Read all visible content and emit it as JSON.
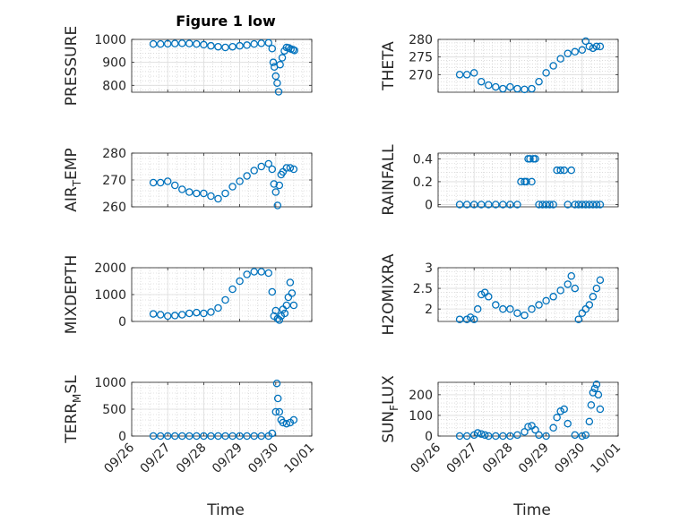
{
  "figure": {
    "title": "Figure 1 low",
    "xlabel": "Time"
  },
  "colors": {
    "marker": "#0072BD",
    "axis": "#262626",
    "grid": "#c8c8c8"
  },
  "chart_data": [
    {
      "type": "scatter",
      "title": "Figure 1 low",
      "ylabel": "PRESSURE",
      "ylabel_parts": [],
      "ylim": [
        770,
        1000
      ],
      "yticks": [
        800,
        900,
        1000
      ],
      "ytick_labels": [
        "800",
        "900",
        "1000"
      ],
      "xlim": [
        0,
        5
      ],
      "x": [
        0.6,
        0.8,
        1.0,
        1.2,
        1.4,
        1.6,
        1.8,
        2.0,
        2.2,
        2.4,
        2.6,
        2.8,
        3.0,
        3.2,
        3.4,
        3.6,
        3.8,
        3.9,
        3.93,
        3.96,
        4.0,
        4.04,
        4.08,
        4.12,
        4.18,
        4.24,
        4.3,
        4.36,
        4.42,
        4.48,
        4.52
      ],
      "y": [
        980,
        980,
        981,
        982,
        983,
        982,
        980,
        977,
        972,
        968,
        965,
        968,
        972,
        975,
        980,
        983,
        985,
        960,
        900,
        880,
        840,
        810,
        772,
        890,
        920,
        950,
        965,
        963,
        958,
        955,
        952
      ]
    },
    {
      "type": "scatter",
      "ylabel": "THETA",
      "ylabel_parts": [],
      "ylim": [
        265,
        280
      ],
      "yticks": [
        270,
        275,
        280
      ],
      "ytick_labels": [
        "270",
        "275",
        "280"
      ],
      "xlim": [
        0,
        5
      ],
      "x": [
        0.6,
        0.8,
        1.0,
        1.2,
        1.4,
        1.6,
        1.8,
        2.0,
        2.2,
        2.4,
        2.6,
        2.8,
        3.0,
        3.2,
        3.4,
        3.6,
        3.8,
        4.0,
        4.1,
        4.2,
        4.3,
        4.4,
        4.5
      ],
      "y": [
        270,
        270,
        270.5,
        268,
        267,
        266.5,
        266,
        266.5,
        266,
        265.8,
        266,
        268,
        270.5,
        272.5,
        274.5,
        276,
        276.5,
        277,
        279.5,
        278,
        277.5,
        278,
        278
      ]
    },
    {
      "type": "scatter",
      "ylabel": "AIR_TEMP",
      "ylabel_parts": [
        "AIR",
        "T",
        "EMP"
      ],
      "ylim": [
        260,
        280
      ],
      "yticks": [
        260,
        270,
        280
      ],
      "ytick_labels": [
        "260",
        "270",
        "280"
      ],
      "xlim": [
        0,
        5
      ],
      "x": [
        0.6,
        0.8,
        1.0,
        1.2,
        1.4,
        1.6,
        1.8,
        2.0,
        2.2,
        2.4,
        2.6,
        2.8,
        3.0,
        3.2,
        3.4,
        3.6,
        3.8,
        3.9,
        3.95,
        4.0,
        4.05,
        4.1,
        4.15,
        4.2,
        4.3,
        4.4,
        4.5
      ],
      "y": [
        269,
        269,
        269.5,
        268,
        266.5,
        265.5,
        265,
        265,
        264,
        263,
        265,
        267.5,
        269.5,
        271.5,
        273.5,
        275,
        276,
        274,
        268.5,
        265.5,
        260.5,
        268,
        272,
        273,
        274.5,
        274.5,
        274
      ]
    },
    {
      "type": "scatter",
      "ylabel": "RAINFALL",
      "ylabel_parts": [],
      "ylim": [
        -0.02,
        0.45
      ],
      "yticks": [
        0,
        0.2,
        0.4
      ],
      "ytick_labels": [
        "0",
        "0.2",
        "0.4"
      ],
      "xlim": [
        0,
        5
      ],
      "x": [
        0.6,
        0.8,
        1.0,
        1.2,
        1.4,
        1.6,
        1.8,
        2.0,
        2.2,
        2.3,
        2.4,
        2.45,
        2.5,
        2.55,
        2.6,
        2.65,
        2.7,
        2.8,
        2.9,
        3.0,
        3.1,
        3.2,
        3.3,
        3.4,
        3.5,
        3.6,
        3.7,
        3.8,
        3.9,
        4.0,
        4.1,
        4.2,
        4.3,
        4.4,
        4.5
      ],
      "y": [
        0,
        0,
        0,
        0,
        0,
        0,
        0,
        0,
        0,
        0.2,
        0.2,
        0.2,
        0.4,
        0.4,
        0.2,
        0.4,
        0.4,
        0,
        0,
        0,
        0,
        0,
        0.3,
        0.3,
        0.3,
        0,
        0.3,
        0,
        0,
        0,
        0,
        0,
        0,
        0,
        0
      ]
    },
    {
      "type": "scatter",
      "ylabel": "MIXDEPTH",
      "ylabel_parts": [],
      "ylim": [
        0,
        2000
      ],
      "yticks": [
        0,
        1000,
        2000
      ],
      "ytick_labels": [
        "0",
        "1000",
        "2000"
      ],
      "xlim": [
        0,
        5
      ],
      "x": [
        0.6,
        0.8,
        1.0,
        1.2,
        1.4,
        1.6,
        1.8,
        2.0,
        2.2,
        2.4,
        2.6,
        2.8,
        3.0,
        3.2,
        3.4,
        3.6,
        3.8,
        3.9,
        3.95,
        4.0,
        4.05,
        4.1,
        4.15,
        4.2,
        4.25,
        4.3,
        4.35,
        4.4,
        4.45,
        4.5
      ],
      "y": [
        280,
        250,
        200,
        220,
        250,
        300,
        330,
        300,
        350,
        500,
        800,
        1200,
        1500,
        1750,
        1850,
        1850,
        1800,
        1100,
        200,
        400,
        100,
        50,
        200,
        450,
        300,
        600,
        900,
        1450,
        1050,
        600
      ]
    },
    {
      "type": "scatter",
      "ylabel": "H2OMIXRA",
      "ylabel_parts": [],
      "ylim": [
        1.7,
        3.0
      ],
      "yticks": [
        2,
        2.5,
        3
      ],
      "ytick_labels": [
        "2",
        "2.5",
        "3"
      ],
      "xlim": [
        0,
        5
      ],
      "x": [
        0.6,
        0.8,
        0.9,
        1.0,
        1.1,
        1.2,
        1.3,
        1.4,
        1.6,
        1.8,
        2.0,
        2.2,
        2.4,
        2.6,
        2.8,
        3.0,
        3.2,
        3.4,
        3.6,
        3.7,
        3.8,
        3.9,
        4.0,
        4.1,
        4.2,
        4.3,
        4.4,
        4.5
      ],
      "y": [
        1.75,
        1.75,
        1.8,
        1.75,
        2.0,
        2.35,
        2.4,
        2.3,
        2.1,
        2.0,
        2.0,
        1.9,
        1.85,
        2.0,
        2.1,
        2.2,
        2.3,
        2.45,
        2.6,
        2.8,
        2.5,
        1.75,
        1.9,
        2.0,
        2.1,
        2.3,
        2.5,
        2.7
      ]
    },
    {
      "type": "scatter",
      "ylabel": "TERR_MSL",
      "ylabel_parts": [
        "TERR",
        "M",
        "SL"
      ],
      "ylim": [
        0,
        1000
      ],
      "yticks": [
        0,
        500,
        1000
      ],
      "ytick_labels": [
        "0",
        "500",
        "1000"
      ],
      "xlim": [
        0,
        5
      ],
      "x": [
        0.6,
        0.8,
        1.0,
        1.2,
        1.4,
        1.6,
        1.8,
        2.0,
        2.2,
        2.4,
        2.6,
        2.8,
        3.0,
        3.2,
        3.4,
        3.6,
        3.8,
        3.9,
        4.0,
        4.03,
        4.06,
        4.1,
        4.15,
        4.2,
        4.3,
        4.4,
        4.5
      ],
      "y": [
        0,
        0,
        0,
        0,
        0,
        0,
        0,
        0,
        0,
        0,
        0,
        0,
        0,
        0,
        0,
        0,
        0,
        50,
        450,
        980,
        700,
        450,
        300,
        250,
        230,
        250,
        300
      ]
    },
    {
      "type": "scatter",
      "ylabel": "SUN_FLUX",
      "ylabel_parts": [
        "SUN",
        "F",
        "LUX"
      ],
      "ylim": [
        0,
        260
      ],
      "yticks": [
        0,
        100,
        200
      ],
      "ytick_labels": [
        "0",
        "100",
        "200"
      ],
      "xlim": [
        0,
        5
      ],
      "x": [
        0.6,
        0.8,
        1.0,
        1.1,
        1.2,
        1.3,
        1.4,
        1.6,
        1.8,
        2.0,
        2.2,
        2.4,
        2.5,
        2.6,
        2.7,
        2.8,
        3.0,
        3.2,
        3.3,
        3.4,
        3.5,
        3.6,
        3.8,
        4.0,
        4.1,
        4.2,
        4.25,
        4.3,
        4.35,
        4.4,
        4.45,
        4.5
      ],
      "y": [
        0,
        0,
        5,
        15,
        10,
        5,
        0,
        0,
        0,
        0,
        5,
        20,
        45,
        50,
        30,
        5,
        0,
        40,
        90,
        120,
        130,
        60,
        5,
        0,
        5,
        70,
        150,
        210,
        230,
        250,
        200,
        130
      ]
    }
  ],
  "xaxis": {
    "ticks": [
      0,
      1,
      2,
      3,
      4,
      5
    ],
    "tick_labels": [
      "09/26",
      "09/27",
      "09/28",
      "09/29",
      "09/30",
      "10/01"
    ]
  }
}
